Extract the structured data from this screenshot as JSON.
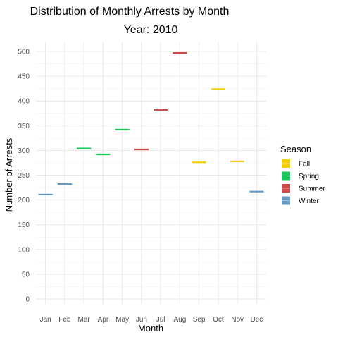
{
  "chart_data": {
    "type": "box",
    "title": "Distribution of Monthly Arrests by Month",
    "subtitle": "Year: 2010",
    "xlabel": "Month",
    "ylabel": "Number of Arrests",
    "ylim": [
      -10,
      520
    ],
    "yticks": [
      0,
      50,
      100,
      150,
      200,
      250,
      300,
      350,
      400,
      450,
      500
    ],
    "grid": true,
    "legend_position": "right",
    "categories": [
      "Jan",
      "Feb",
      "Mar",
      "Apr",
      "May",
      "Jun",
      "Jul",
      "Aug",
      "Sep",
      "Oct",
      "Nov",
      "Dec"
    ],
    "values": [
      211,
      232,
      304,
      292,
      342,
      302,
      382,
      497,
      276,
      424,
      278,
      217
    ],
    "season": [
      "Winter",
      "Winter",
      "Spring",
      "Spring",
      "Spring",
      "Summer",
      "Summer",
      "Summer",
      "Fall",
      "Fall",
      "Fall",
      "Winter"
    ],
    "legend": {
      "title": "Season",
      "items": [
        {
          "name": "Fall",
          "color": "#F5CE0F"
        },
        {
          "name": "Spring",
          "color": "#1DC557"
        },
        {
          "name": "Summer",
          "color": "#CF4A4A"
        },
        {
          "name": "Winter",
          "color": "#6399C3"
        }
      ]
    }
  }
}
